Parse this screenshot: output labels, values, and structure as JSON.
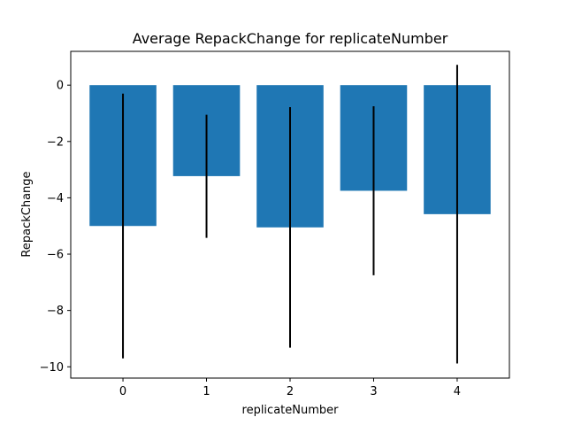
{
  "chart_data": {
    "type": "bar",
    "title": "Average RepackChange for replicateNumber",
    "xlabel": "replicateNumber",
    "ylabel": "RepackChange",
    "categories": [
      "0",
      "1",
      "2",
      "3",
      "4"
    ],
    "values": [
      -5.0,
      -3.23,
      -5.05,
      -3.75,
      -4.58
    ],
    "error_low": [
      -9.7,
      -5.42,
      -9.32,
      -6.75,
      -9.88
    ],
    "error_high": [
      -0.3,
      -1.05,
      -0.78,
      -0.75,
      0.72
    ],
    "ylim": [
      -10.4,
      1.2
    ],
    "yticks": [
      0,
      -2,
      -4,
      -6,
      -8,
      -10
    ],
    "ytick_labels": [
      "0",
      "−2",
      "−4",
      "−6",
      "−8",
      "−10"
    ],
    "bar_color": "#1f77b4",
    "error_color": "#000000",
    "grid": false,
    "legend": "none"
  }
}
